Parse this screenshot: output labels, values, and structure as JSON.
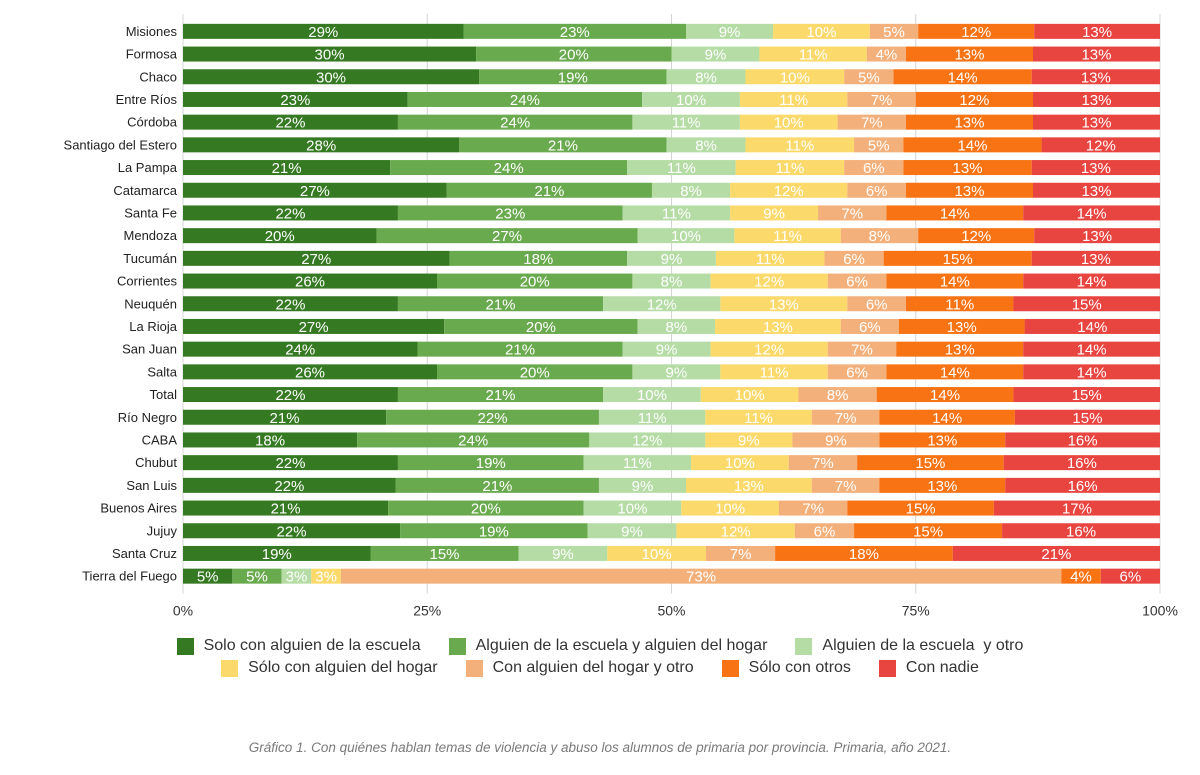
{
  "chart_data": {
    "type": "bar",
    "orientation": "horizontal",
    "stacked": true,
    "xlim": [
      0,
      100
    ],
    "xticks": [
      "0%",
      "25%",
      "50%",
      "75%",
      "100%"
    ],
    "grid": true,
    "legend_position": "bottom",
    "categories": [
      "Misiones",
      "Formosa",
      "Chaco",
      "Entre Ríos",
      "Córdoba",
      "Santiago del Estero",
      "La Pampa",
      "Catamarca",
      "Santa Fe",
      "Mendoza",
      "Tucumán",
      "Corrientes",
      "Neuquén",
      "La Rioja",
      "San Juan",
      "Salta",
      "Total",
      "Río Negro",
      "CABA",
      "Chubut",
      "San Luis",
      "Buenos Aires",
      "Jujuy",
      "Santa Cruz",
      "Tierra del Fuego"
    ],
    "series": [
      {
        "name": "Solo con alguien de la escuela",
        "color": "#357a22",
        "values": [
          29,
          30,
          30,
          23,
          22,
          28,
          21,
          27,
          22,
          20,
          27,
          26,
          22,
          27,
          24,
          26,
          22,
          21,
          18,
          22,
          22,
          21,
          22,
          19,
          5
        ]
      },
      {
        "name": "Alguien de la escuela y alguien del hogar",
        "color": "#6aaa4e",
        "values": [
          23,
          20,
          19,
          24,
          24,
          21,
          24,
          21,
          23,
          27,
          18,
          20,
          21,
          20,
          21,
          20,
          21,
          22,
          24,
          19,
          21,
          20,
          19,
          15,
          5
        ]
      },
      {
        "name": "Alguien de la escuela  y otro",
        "color": "#b5dca5",
        "values": [
          9,
          9,
          8,
          10,
          11,
          8,
          11,
          8,
          11,
          10,
          9,
          8,
          12,
          8,
          9,
          9,
          10,
          11,
          12,
          11,
          9,
          10,
          9,
          9,
          3
        ]
      },
      {
        "name": "Sólo con alguien del hogar",
        "color": "#fcd96b",
        "values": [
          10,
          11,
          10,
          11,
          10,
          11,
          11,
          12,
          9,
          11,
          11,
          12,
          13,
          13,
          12,
          11,
          10,
          11,
          9,
          10,
          13,
          10,
          12,
          10,
          3
        ]
      },
      {
        "name": "Con alguien del hogar y otro",
        "color": "#f4b07a",
        "values": [
          5,
          4,
          5,
          7,
          7,
          5,
          6,
          6,
          7,
          8,
          6,
          6,
          6,
          6,
          7,
          6,
          8,
          7,
          9,
          7,
          7,
          7,
          6,
          7,
          73
        ]
      },
      {
        "name": "Sólo con otros",
        "color": "#f87313",
        "values": [
          12,
          13,
          14,
          12,
          13,
          14,
          13,
          13,
          14,
          12,
          15,
          14,
          11,
          13,
          13,
          14,
          14,
          14,
          13,
          15,
          13,
          15,
          15,
          18,
          4
        ]
      },
      {
        "name": "Con nadie",
        "color": "#e84440",
        "values": [
          13,
          13,
          13,
          13,
          13,
          12,
          13,
          13,
          14,
          13,
          13,
          14,
          15,
          14,
          14,
          14,
          15,
          15,
          16,
          16,
          16,
          17,
          16,
          21,
          6
        ]
      }
    ],
    "data_label_suffix": "%"
  },
  "caption": "Gráfico 1. Con quiénes hablan temas de violencia y abuso los alumnos de primaria por provincia. Primaria, año 2021."
}
